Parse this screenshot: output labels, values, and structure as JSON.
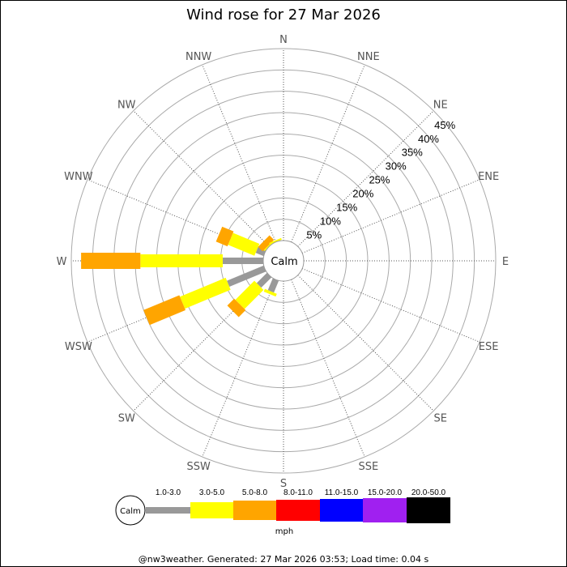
{
  "chart_data": {
    "type": "wind-rose",
    "title": "Wind rose for 27 Mar 2026",
    "center_label": "Calm",
    "directions": [
      "N",
      "NNE",
      "NE",
      "ENE",
      "E",
      "ESE",
      "SE",
      "SSE",
      "S",
      "SSW",
      "SW",
      "WSW",
      "W",
      "WNW",
      "NW",
      "NNW"
    ],
    "radial_ticks": [
      "5%",
      "10%",
      "15%",
      "20%",
      "25%",
      "30%",
      "35%",
      "40%",
      "45%"
    ],
    "radial_max_percent": 45,
    "unit": "mph",
    "series": [
      {
        "name": "1.0-3.0",
        "color": "#999999",
        "values": [
          0,
          0,
          0,
          0,
          0,
          0,
          0,
          0,
          0,
          3.0,
          3.4,
          9.3,
          9.5,
          2.0,
          0,
          0
        ]
      },
      {
        "name": "3.0-5.0",
        "color": "#ffff00",
        "values": [
          0,
          0,
          0,
          0,
          0,
          0,
          0,
          0,
          0,
          0.7,
          6.3,
          11.6,
          19.3,
          6.7,
          0.3,
          0.4
        ]
      },
      {
        "name": "5.0-8.0",
        "color": "#ffa500",
        "values": [
          0,
          0,
          0,
          0,
          0,
          0,
          0,
          0,
          0,
          0,
          2.3,
          9.1,
          13.9,
          2.9,
          1.5,
          0
        ]
      },
      {
        "name": "8.0-11.0",
        "color": "#ff0000",
        "values": [
          0,
          0,
          0,
          0,
          0,
          0,
          0,
          0,
          0,
          0,
          0,
          0,
          0,
          0,
          0,
          0
        ]
      },
      {
        "name": "11.0-15.0",
        "color": "#0000ff",
        "values": [
          0,
          0,
          0,
          0,
          0,
          0,
          0,
          0,
          0,
          0,
          0,
          0,
          0,
          0,
          0,
          0
        ]
      },
      {
        "name": "15.0-20.0",
        "color": "#a020f0",
        "values": [
          0,
          0,
          0,
          0,
          0,
          0,
          0,
          0,
          0,
          0,
          0,
          0,
          0,
          0,
          0,
          0
        ]
      },
      {
        "name": "20.0-50.0",
        "color": "#000000",
        "values": [
          0,
          0,
          0,
          0,
          0,
          0,
          0,
          0,
          0,
          0,
          0,
          0,
          0,
          0,
          0,
          0
        ]
      }
    ],
    "legend_placement": "bottom"
  },
  "footer": "@nw3weather. Generated: 27 Mar 2026 03:53; Load time: 0.04 s"
}
